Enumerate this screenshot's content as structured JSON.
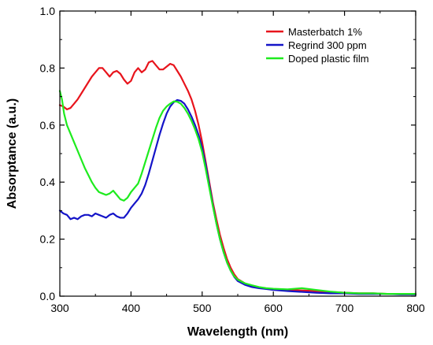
{
  "chart_data": {
    "type": "line",
    "title": "",
    "xlabel": "Wavelength (nm)",
    "ylabel": "Absorptance (a.u.)",
    "xlim": [
      300,
      800
    ],
    "ylim": [
      0.0,
      1.0
    ],
    "xticks": [
      300,
      400,
      500,
      600,
      700,
      800
    ],
    "yticks": [
      0.0,
      0.2,
      0.4,
      0.6,
      0.8,
      1.0
    ],
    "xtick_labels": [
      "300",
      "400",
      "500",
      "600",
      "700",
      "800"
    ],
    "ytick_labels": [
      "0.0",
      "0.2",
      "0.4",
      "0.6",
      "0.8",
      "1.0"
    ],
    "grid": false,
    "legend_position": "top-right",
    "series": [
      {
        "name": "Masterbatch 1%",
        "color": "#e8141c",
        "points": [
          [
            300,
            0.67
          ],
          [
            305,
            0.665
          ],
          [
            310,
            0.655
          ],
          [
            315,
            0.66
          ],
          [
            320,
            0.675
          ],
          [
            325,
            0.69
          ],
          [
            330,
            0.71
          ],
          [
            335,
            0.73
          ],
          [
            340,
            0.75
          ],
          [
            345,
            0.77
          ],
          [
            350,
            0.785
          ],
          [
            355,
            0.8
          ],
          [
            360,
            0.8
          ],
          [
            365,
            0.785
          ],
          [
            370,
            0.77
          ],
          [
            375,
            0.785
          ],
          [
            380,
            0.79
          ],
          [
            385,
            0.78
          ],
          [
            390,
            0.76
          ],
          [
            395,
            0.745
          ],
          [
            400,
            0.755
          ],
          [
            405,
            0.785
          ],
          [
            410,
            0.8
          ],
          [
            415,
            0.785
          ],
          [
            420,
            0.795
          ],
          [
            425,
            0.82
          ],
          [
            430,
            0.825
          ],
          [
            435,
            0.81
          ],
          [
            440,
            0.795
          ],
          [
            445,
            0.795
          ],
          [
            450,
            0.805
          ],
          [
            455,
            0.815
          ],
          [
            460,
            0.81
          ],
          [
            465,
            0.79
          ],
          [
            470,
            0.77
          ],
          [
            475,
            0.745
          ],
          [
            480,
            0.72
          ],
          [
            485,
            0.69
          ],
          [
            490,
            0.65
          ],
          [
            495,
            0.6
          ],
          [
            500,
            0.54
          ],
          [
            505,
            0.47
          ],
          [
            510,
            0.4
          ],
          [
            515,
            0.33
          ],
          [
            520,
            0.27
          ],
          [
            525,
            0.215
          ],
          [
            530,
            0.17
          ],
          [
            535,
            0.13
          ],
          [
            540,
            0.1
          ],
          [
            545,
            0.077
          ],
          [
            550,
            0.06
          ],
          [
            560,
            0.045
          ],
          [
            570,
            0.035
          ],
          [
            580,
            0.03
          ],
          [
            590,
            0.027
          ],
          [
            600,
            0.025
          ],
          [
            620,
            0.023
          ],
          [
            640,
            0.02
          ],
          [
            660,
            0.018
          ],
          [
            680,
            0.015
          ],
          [
            700,
            0.012
          ],
          [
            720,
            0.01
          ],
          [
            740,
            0.01
          ],
          [
            760,
            0.008
          ],
          [
            780,
            0.008
          ],
          [
            800,
            0.008
          ]
        ]
      },
      {
        "name": "Regrind 300 ppm",
        "color": "#1414c8",
        "points": [
          [
            300,
            0.3
          ],
          [
            305,
            0.29
          ],
          [
            310,
            0.285
          ],
          [
            315,
            0.27
          ],
          [
            320,
            0.275
          ],
          [
            325,
            0.27
          ],
          [
            330,
            0.28
          ],
          [
            335,
            0.285
          ],
          [
            340,
            0.285
          ],
          [
            345,
            0.28
          ],
          [
            350,
            0.29
          ],
          [
            355,
            0.285
          ],
          [
            360,
            0.28
          ],
          [
            365,
            0.275
          ],
          [
            370,
            0.285
          ],
          [
            375,
            0.29
          ],
          [
            380,
            0.28
          ],
          [
            385,
            0.275
          ],
          [
            390,
            0.275
          ],
          [
            395,
            0.29
          ],
          [
            400,
            0.31
          ],
          [
            405,
            0.325
          ],
          [
            410,
            0.34
          ],
          [
            415,
            0.36
          ],
          [
            420,
            0.39
          ],
          [
            425,
            0.43
          ],
          [
            430,
            0.475
          ],
          [
            435,
            0.52
          ],
          [
            440,
            0.565
          ],
          [
            445,
            0.605
          ],
          [
            450,
            0.64
          ],
          [
            455,
            0.665
          ],
          [
            460,
            0.68
          ],
          [
            465,
            0.688
          ],
          [
            470,
            0.685
          ],
          [
            475,
            0.675
          ],
          [
            480,
            0.655
          ],
          [
            485,
            0.63
          ],
          [
            490,
            0.6
          ],
          [
            495,
            0.565
          ],
          [
            500,
            0.52
          ],
          [
            505,
            0.46
          ],
          [
            510,
            0.39
          ],
          [
            515,
            0.32
          ],
          [
            520,
            0.255
          ],
          [
            525,
            0.2
          ],
          [
            530,
            0.155
          ],
          [
            535,
            0.118
          ],
          [
            540,
            0.09
          ],
          [
            545,
            0.068
          ],
          [
            550,
            0.053
          ],
          [
            560,
            0.04
          ],
          [
            570,
            0.032
          ],
          [
            580,
            0.028
          ],
          [
            590,
            0.025
          ],
          [
            600,
            0.022
          ],
          [
            620,
            0.018
          ],
          [
            640,
            0.015
          ],
          [
            660,
            0.012
          ],
          [
            680,
            0.01
          ],
          [
            700,
            0.01
          ],
          [
            720,
            0.008
          ],
          [
            740,
            0.008
          ],
          [
            760,
            0.008
          ],
          [
            780,
            0.006
          ],
          [
            800,
            0.006
          ]
        ]
      },
      {
        "name": "Doped plastic film",
        "color": "#1eeb1e",
        "points": [
          [
            300,
            0.72
          ],
          [
            303,
            0.69
          ],
          [
            306,
            0.64
          ],
          [
            310,
            0.6
          ],
          [
            315,
            0.57
          ],
          [
            320,
            0.54
          ],
          [
            325,
            0.51
          ],
          [
            330,
            0.48
          ],
          [
            335,
            0.45
          ],
          [
            340,
            0.425
          ],
          [
            345,
            0.4
          ],
          [
            350,
            0.38
          ],
          [
            355,
            0.365
          ],
          [
            360,
            0.36
          ],
          [
            365,
            0.355
          ],
          [
            370,
            0.36
          ],
          [
            375,
            0.37
          ],
          [
            380,
            0.355
          ],
          [
            385,
            0.34
          ],
          [
            390,
            0.335
          ],
          [
            395,
            0.345
          ],
          [
            400,
            0.365
          ],
          [
            405,
            0.38
          ],
          [
            410,
            0.395
          ],
          [
            415,
            0.43
          ],
          [
            420,
            0.47
          ],
          [
            425,
            0.51
          ],
          [
            430,
            0.55
          ],
          [
            435,
            0.59
          ],
          [
            440,
            0.625
          ],
          [
            445,
            0.65
          ],
          [
            450,
            0.665
          ],
          [
            455,
            0.675
          ],
          [
            460,
            0.683
          ],
          [
            465,
            0.682
          ],
          [
            470,
            0.675
          ],
          [
            475,
            0.66
          ],
          [
            480,
            0.64
          ],
          [
            485,
            0.615
          ],
          [
            490,
            0.585
          ],
          [
            495,
            0.55
          ],
          [
            500,
            0.505
          ],
          [
            505,
            0.445
          ],
          [
            510,
            0.38
          ],
          [
            515,
            0.315
          ],
          [
            520,
            0.255
          ],
          [
            525,
            0.2
          ],
          [
            530,
            0.155
          ],
          [
            535,
            0.118
          ],
          [
            540,
            0.09
          ],
          [
            545,
            0.07
          ],
          [
            550,
            0.058
          ],
          [
            560,
            0.045
          ],
          [
            570,
            0.038
          ],
          [
            580,
            0.032
          ],
          [
            590,
            0.028
          ],
          [
            600,
            0.026
          ],
          [
            620,
            0.024
          ],
          [
            640,
            0.028
          ],
          [
            660,
            0.022
          ],
          [
            680,
            0.016
          ],
          [
            700,
            0.012
          ],
          [
            720,
            0.01
          ],
          [
            740,
            0.01
          ],
          [
            760,
            0.008
          ],
          [
            780,
            0.008
          ],
          [
            800,
            0.008
          ]
        ]
      }
    ]
  }
}
